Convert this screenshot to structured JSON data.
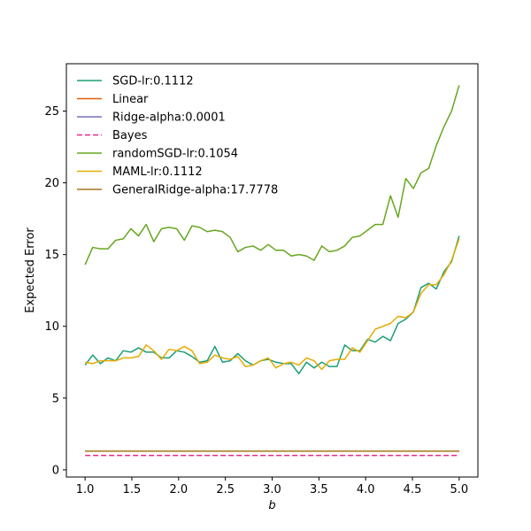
{
  "chart_data": {
    "type": "line",
    "xlabel": "b",
    "ylabel": "Expected Error",
    "xlim": [
      0.8,
      5.2
    ],
    "ylim": [
      -0.5,
      28.3
    ],
    "xticks": [
      1.0,
      1.5,
      2.0,
      2.5,
      3.0,
      3.5,
      4.0,
      4.5,
      5.0
    ],
    "xtick_labels": [
      "1.0",
      "1.5",
      "2.0",
      "2.5",
      "3.0",
      "3.5",
      "4.0",
      "4.5",
      "5.0"
    ],
    "yticks": [
      0,
      5,
      10,
      15,
      20,
      25
    ],
    "ytick_labels": [
      "0",
      "5",
      "10",
      "15",
      "20",
      "25"
    ],
    "grid": false,
    "legend_position": "top-left",
    "x": [
      1.0,
      1.0816,
      1.1633,
      1.2449,
      1.3265,
      1.4082,
      1.4898,
      1.5714,
      1.6531,
      1.7347,
      1.8163,
      1.898,
      1.9796,
      2.0612,
      2.1429,
      2.2245,
      2.3061,
      2.3878,
      2.4694,
      2.551,
      2.6327,
      2.7143,
      2.7959,
      2.8776,
      2.9592,
      3.0408,
      3.1224,
      3.2041,
      3.2857,
      3.3673,
      3.449,
      3.5306,
      3.6122,
      3.6939,
      3.7755,
      3.8571,
      3.9388,
      4.0204,
      4.102,
      4.1837,
      4.2653,
      4.3469,
      4.4286,
      4.5102,
      4.5918,
      4.6735,
      4.7551,
      4.8367,
      4.9184,
      5.0
    ],
    "series": [
      {
        "name": "SGD-lr:0.1112",
        "color": "#1b9e77",
        "dash": "solid",
        "values": [
          7.3,
          8.0,
          7.4,
          7.8,
          7.6,
          8.3,
          8.2,
          8.5,
          8.2,
          8.2,
          7.8,
          7.8,
          8.3,
          8.2,
          7.9,
          7.5,
          7.6,
          8.6,
          7.5,
          7.6,
          8.1,
          7.6,
          7.3,
          7.6,
          7.7,
          7.5,
          7.4,
          7.4,
          6.7,
          7.5,
          7.1,
          7.5,
          7.2,
          7.2,
          8.7,
          8.3,
          8.3,
          9.1,
          8.9,
          9.3,
          9.0,
          10.2,
          10.5,
          11.0,
          12.7,
          13.0,
          12.6,
          13.8,
          14.5,
          16.3
        ]
      },
      {
        "name": "Linear",
        "color": "#d95f02",
        "dash": "solid",
        "values": [
          1.3,
          1.3,
          1.3,
          1.3,
          1.3,
          1.3,
          1.3,
          1.3,
          1.3,
          1.3,
          1.3,
          1.3,
          1.3,
          1.3,
          1.3,
          1.3,
          1.3,
          1.3,
          1.3,
          1.3,
          1.3,
          1.3,
          1.3,
          1.3,
          1.3,
          1.3,
          1.3,
          1.3,
          1.3,
          1.3,
          1.3,
          1.3,
          1.3,
          1.3,
          1.3,
          1.3,
          1.3,
          1.3,
          1.3,
          1.3,
          1.3,
          1.3,
          1.3,
          1.3,
          1.3,
          1.3,
          1.3,
          1.3,
          1.3,
          1.3
        ]
      },
      {
        "name": "Ridge-alpha:0.0001",
        "color": "#7570b3",
        "dash": "solid",
        "values": [
          1.3,
          1.3,
          1.3,
          1.3,
          1.3,
          1.3,
          1.3,
          1.3,
          1.3,
          1.3,
          1.3,
          1.3,
          1.3,
          1.3,
          1.3,
          1.3,
          1.3,
          1.3,
          1.3,
          1.3,
          1.3,
          1.3,
          1.3,
          1.3,
          1.3,
          1.3,
          1.3,
          1.3,
          1.3,
          1.3,
          1.3,
          1.3,
          1.3,
          1.3,
          1.3,
          1.3,
          1.3,
          1.3,
          1.3,
          1.3,
          1.3,
          1.3,
          1.3,
          1.3,
          1.3,
          1.3,
          1.3,
          1.3,
          1.3,
          1.3
        ]
      },
      {
        "name": "Bayes",
        "color": "#e7298a",
        "dash": "dashed",
        "values": [
          1.0,
          1.0,
          1.0,
          1.0,
          1.0,
          1.0,
          1.0,
          1.0,
          1.0,
          1.0,
          1.0,
          1.0,
          1.0,
          1.0,
          1.0,
          1.0,
          1.0,
          1.0,
          1.0,
          1.0,
          1.0,
          1.0,
          1.0,
          1.0,
          1.0,
          1.0,
          1.0,
          1.0,
          1.0,
          1.0,
          1.0,
          1.0,
          1.0,
          1.0,
          1.0,
          1.0,
          1.0,
          1.0,
          1.0,
          1.0,
          1.0,
          1.0,
          1.0,
          1.0,
          1.0,
          1.0,
          1.0,
          1.0,
          1.0,
          1.0
        ]
      },
      {
        "name": "randomSGD-lr:0.1054",
        "color": "#66a61e",
        "dash": "solid",
        "values": [
          14.3,
          15.5,
          15.4,
          15.4,
          16.0,
          16.1,
          16.8,
          16.3,
          17.1,
          15.9,
          16.8,
          16.9,
          16.8,
          16.0,
          17.0,
          16.9,
          16.6,
          16.7,
          16.6,
          16.2,
          15.2,
          15.5,
          15.6,
          15.3,
          15.7,
          15.3,
          15.3,
          14.9,
          15.0,
          14.9,
          14.6,
          15.6,
          15.2,
          15.3,
          15.6,
          16.2,
          16.3,
          16.7,
          17.1,
          17.1,
          19.1,
          17.6,
          20.3,
          19.6,
          20.7,
          21.0,
          22.6,
          23.9,
          25.0,
          26.8
        ]
      },
      {
        "name": "MAML-lr:0.1112",
        "color": "#e6ab02",
        "dash": "solid",
        "values": [
          7.5,
          7.4,
          7.6,
          7.6,
          7.6,
          7.8,
          7.8,
          7.9,
          8.7,
          8.3,
          7.7,
          8.4,
          8.3,
          8.6,
          8.3,
          7.4,
          7.5,
          8.0,
          7.8,
          7.7,
          7.9,
          7.2,
          7.3,
          7.6,
          7.8,
          7.1,
          7.4,
          7.5,
          7.3,
          7.8,
          7.6,
          7.0,
          7.6,
          7.7,
          7.7,
          8.5,
          8.2,
          9.0,
          9.8,
          10.0,
          10.2,
          10.7,
          10.6,
          11.0,
          12.3,
          12.9,
          12.9,
          13.6,
          14.6,
          16.1
        ]
      },
      {
        "name": "GeneralRidge-alpha:17.7778",
        "color": "#a6761d",
        "dash": "solid",
        "values": [
          1.3,
          1.3,
          1.3,
          1.3,
          1.3,
          1.3,
          1.3,
          1.3,
          1.3,
          1.3,
          1.3,
          1.3,
          1.3,
          1.3,
          1.3,
          1.3,
          1.3,
          1.3,
          1.3,
          1.3,
          1.3,
          1.3,
          1.3,
          1.3,
          1.3,
          1.3,
          1.3,
          1.3,
          1.3,
          1.3,
          1.3,
          1.3,
          1.3,
          1.3,
          1.3,
          1.3,
          1.3,
          1.3,
          1.3,
          1.3,
          1.3,
          1.3,
          1.3,
          1.3,
          1.3,
          1.3,
          1.3,
          1.3,
          1.3,
          1.3
        ]
      }
    ]
  }
}
